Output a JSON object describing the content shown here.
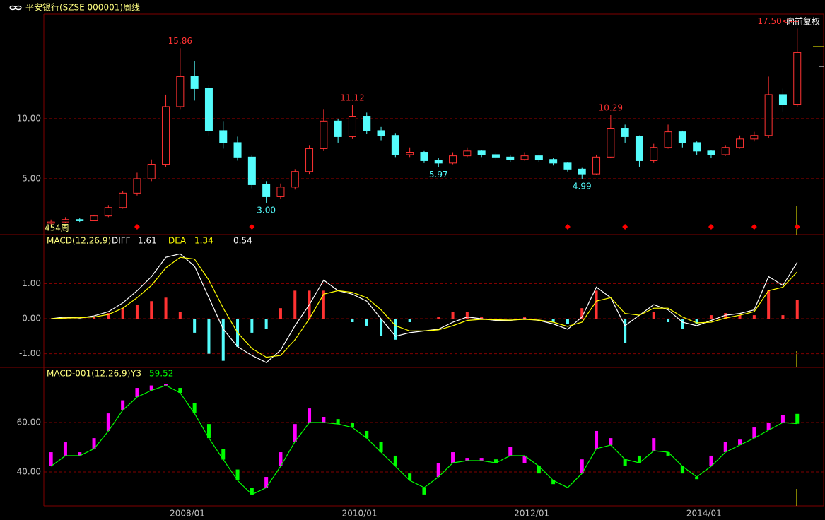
{
  "header": {
    "title": "平安银行(SZSE 000001)周线",
    "adjust": "向前复权"
  },
  "chart_data": [
    {
      "type": "candlestick",
      "categories": [
        null,
        null,
        null,
        null,
        null,
        null,
        null,
        null,
        null,
        null,
        "2008/01",
        null,
        null,
        null,
        null,
        null,
        null,
        null,
        null,
        null,
        null,
        null,
        "2010/01",
        null,
        null,
        null,
        null,
        null,
        null,
        null,
        null,
        null,
        null,
        null,
        "2012/01",
        null,
        null,
        null,
        null,
        null,
        null,
        null,
        null,
        null,
        null,
        null,
        "2014/01",
        null,
        null,
        null,
        null,
        null,
        null
      ],
      "open": [
        1.3,
        1.4,
        1.6,
        1.5,
        1.9,
        2.6,
        3.8,
        5.0,
        6.2,
        11.0,
        13.5,
        12.5,
        9.0,
        8.0,
        6.8,
        4.5,
        3.5,
        4.3,
        5.6,
        7.5,
        9.8,
        8.5,
        10.2,
        9.0,
        8.6,
        7.0,
        7.2,
        6.5,
        6.3,
        6.9,
        7.3,
        7.0,
        6.8,
        6.6,
        6.9,
        6.6,
        6.3,
        5.8,
        5.4,
        6.8,
        9.2,
        8.5,
        6.5,
        7.6,
        8.9,
        8.0,
        7.3,
        7.0,
        7.6,
        8.3,
        8.6,
        12.0,
        11.2
      ],
      "high": [
        1.6,
        1.8,
        1.7,
        2.0,
        2.8,
        4.0,
        5.5,
        6.6,
        12.0,
        15.86,
        14.8,
        12.8,
        9.8,
        8.5,
        7.0,
        4.8,
        4.6,
        5.8,
        7.8,
        10.8,
        10.0,
        11.12,
        10.5,
        9.3,
        8.8,
        7.6,
        7.3,
        6.7,
        7.2,
        7.6,
        7.4,
        7.2,
        7.0,
        7.2,
        7.0,
        6.7,
        6.4,
        5.9,
        7.0,
        10.29,
        9.5,
        8.6,
        7.9,
        9.5,
        9.0,
        8.1,
        7.4,
        7.8,
        8.6,
        8.9,
        13.5,
        12.5,
        17.5
      ],
      "low": [
        1.2,
        1.3,
        1.4,
        1.5,
        1.8,
        2.5,
        3.6,
        4.8,
        6.0,
        10.8,
        11.5,
        8.6,
        7.5,
        6.5,
        4.2,
        3.0,
        3.3,
        4.1,
        5.4,
        7.3,
        8.0,
        8.3,
        8.7,
        8.2,
        6.8,
        6.8,
        6.3,
        5.97,
        6.2,
        6.8,
        6.8,
        6.6,
        6.4,
        6.5,
        6.4,
        6.1,
        5.6,
        4.99,
        5.3,
        6.7,
        8.0,
        6.0,
        6.3,
        7.5,
        7.6,
        7.0,
        6.7,
        6.9,
        7.5,
        8.1,
        8.4,
        10.6,
        11.0
      ],
      "close": [
        1.4,
        1.6,
        1.5,
        1.9,
        2.6,
        3.8,
        5.0,
        6.2,
        11.0,
        13.5,
        12.5,
        9.0,
        8.0,
        6.8,
        4.5,
        3.5,
        4.3,
        5.6,
        7.5,
        9.8,
        8.5,
        10.2,
        9.0,
        8.6,
        7.0,
        7.2,
        6.5,
        6.3,
        6.9,
        7.3,
        7.0,
        6.8,
        6.6,
        6.9,
        6.6,
        6.3,
        5.8,
        5.4,
        6.8,
        9.2,
        8.5,
        6.5,
        7.6,
        8.9,
        8.0,
        7.3,
        7.0,
        7.6,
        8.3,
        8.6,
        12.0,
        11.2,
        15.5
      ],
      "up_color": "#ff3232",
      "down_color": "#54fcfc",
      "ylim": [
        0.35,
        18.7
      ],
      "yticks": [
        {
          "value": 5,
          "label": "5.00"
        },
        {
          "value": 10,
          "label": "10.00"
        }
      ],
      "grid": true,
      "high_labels": [
        {
          "value": 15.86,
          "label": "15.86"
        },
        {
          "value": 11.12,
          "label": "11.12"
        },
        {
          "value": 10.29,
          "label": "10.29"
        },
        {
          "value": 17.5,
          "label": "17.50"
        }
      ],
      "low_labels": [
        {
          "value": 3.0,
          "label": "3.00"
        },
        {
          "value": 5.97,
          "label": "5.97"
        },
        {
          "value": 4.99,
          "label": "4.99"
        }
      ],
      "pointer": "<---",
      "period": "454周",
      "signals": [
        6,
        14,
        36,
        40,
        46,
        49,
        52
      ],
      "signal_color": "#ff0000"
    },
    {
      "type": "macd",
      "title": "MACD(12,26,9)",
      "series": [
        {
          "name": "DIFF",
          "color": "#ffffff",
          "values": [
            0.0,
            0.05,
            0.02,
            0.08,
            0.2,
            0.45,
            0.8,
            1.2,
            1.75,
            1.85,
            1.5,
            0.6,
            -0.3,
            -0.8,
            -1.05,
            -1.25,
            -0.9,
            -0.2,
            0.4,
            1.1,
            0.8,
            0.7,
            0.5,
            0.0,
            -0.5,
            -0.4,
            -0.35,
            -0.3,
            -0.1,
            0.05,
            0.0,
            -0.05,
            -0.05,
            0.0,
            -0.05,
            -0.15,
            -0.3,
            0.05,
            0.9,
            0.6,
            -0.2,
            0.1,
            0.4,
            0.25,
            -0.1,
            -0.2,
            -0.05,
            0.1,
            0.15,
            0.25,
            1.2,
            0.95,
            1.61
          ]
        },
        {
          "name": "DEA",
          "color": "#ffff00",
          "values": [
            0.0,
            0.02,
            0.03,
            0.05,
            0.12,
            0.3,
            0.6,
            0.95,
            1.45,
            1.75,
            1.7,
            1.1,
            0.3,
            -0.4,
            -0.85,
            -1.1,
            -1.05,
            -0.6,
            0.0,
            0.7,
            0.8,
            0.75,
            0.6,
            0.25,
            -0.2,
            -0.35,
            -0.35,
            -0.32,
            -0.2,
            -0.05,
            -0.02,
            -0.03,
            -0.04,
            -0.02,
            -0.04,
            -0.1,
            -0.22,
            -0.1,
            0.5,
            0.6,
            0.15,
            0.1,
            0.3,
            0.3,
            0.05,
            -0.12,
            -0.1,
            0.02,
            0.1,
            0.2,
            0.8,
            0.9,
            1.34
          ]
        }
      ],
      "histogram": {
        "values": [
          0,
          0.06,
          -0.02,
          0.06,
          0.16,
          0.3,
          0.4,
          0.5,
          0.6,
          0.2,
          -0.4,
          -1.0,
          -1.2,
          -0.8,
          -0.4,
          -0.3,
          0.3,
          0.8,
          0.8,
          0.8,
          0.0,
          -0.1,
          -0.2,
          -0.5,
          -0.6,
          -0.1,
          0.0,
          0.04,
          0.2,
          0.2,
          0.04,
          -0.04,
          -0.02,
          0.04,
          -0.02,
          -0.1,
          -0.16,
          0.3,
          0.8,
          0.0,
          -0.7,
          0.0,
          0.2,
          -0.1,
          -0.3,
          -0.16,
          0.1,
          0.16,
          0.1,
          0.1,
          0.8,
          0.1,
          0.54
        ],
        "up_color": "#ff3232",
        "down_color": "#54fcfc",
        "label_color": "#ffffff"
      },
      "ylim": [
        -1.39,
        2.4
      ],
      "yticks": [
        {
          "value": -1,
          "label": "-1.00"
        },
        {
          "value": 0,
          "label": "0.00"
        },
        {
          "value": 1,
          "label": "1.00"
        }
      ],
      "grid": true
    },
    {
      "type": "macd-001",
      "title": "MACD-001(12,26,9)",
      "series": [
        {
          "name": "Y3",
          "color": "#00ff00",
          "values": [
            42.3,
            46.6,
            46.6,
            49.4,
            56.6,
            65,
            70.3,
            73,
            75,
            72,
            63.7,
            53.7,
            45,
            36.6,
            30.9,
            33.7,
            42.3,
            52.3,
            60,
            60,
            59.4,
            58,
            53.7,
            48,
            42.3,
            36.6,
            33.7,
            38,
            43.7,
            44.6,
            44.6,
            43.7,
            46.6,
            46.6,
            42.3,
            36.6,
            33.7,
            39.4,
            49.4,
            50.9,
            45.1,
            43.7,
            48.6,
            48,
            42.3,
            38,
            42.3,
            48,
            50.9,
            53.7,
            56.9,
            60,
            59.52
          ]
        }
      ],
      "bars": {
        "values": [
          48,
          52,
          48,
          53.7,
          63.7,
          69,
          74,
          75,
          75.7,
          74,
          68,
          59.4,
          49.4,
          41,
          33.7,
          38,
          48,
          59.4,
          65.7,
          62.3,
          61.4,
          60,
          56.6,
          52.3,
          46.6,
          39.4,
          30.9,
          43.7,
          48,
          45.7,
          45.7,
          45.1,
          50.3,
          43.7,
          39.4,
          35.1,
          33.7,
          45.1,
          56.6,
          53.7,
          42.3,
          46.6,
          53.7,
          46.6,
          39.4,
          37.1,
          46.6,
          52.3,
          53.1,
          58,
          60,
          62.9,
          63.5
        ],
        "up_color": "#ff00ff",
        "down_color": "#00ff00"
      },
      "ylim": [
        26.3,
        82.3
      ],
      "yticks": [
        {
          "value": 40,
          "label": "40.00"
        },
        {
          "value": 60,
          "label": "60.00"
        }
      ],
      "grid": true
    }
  ]
}
